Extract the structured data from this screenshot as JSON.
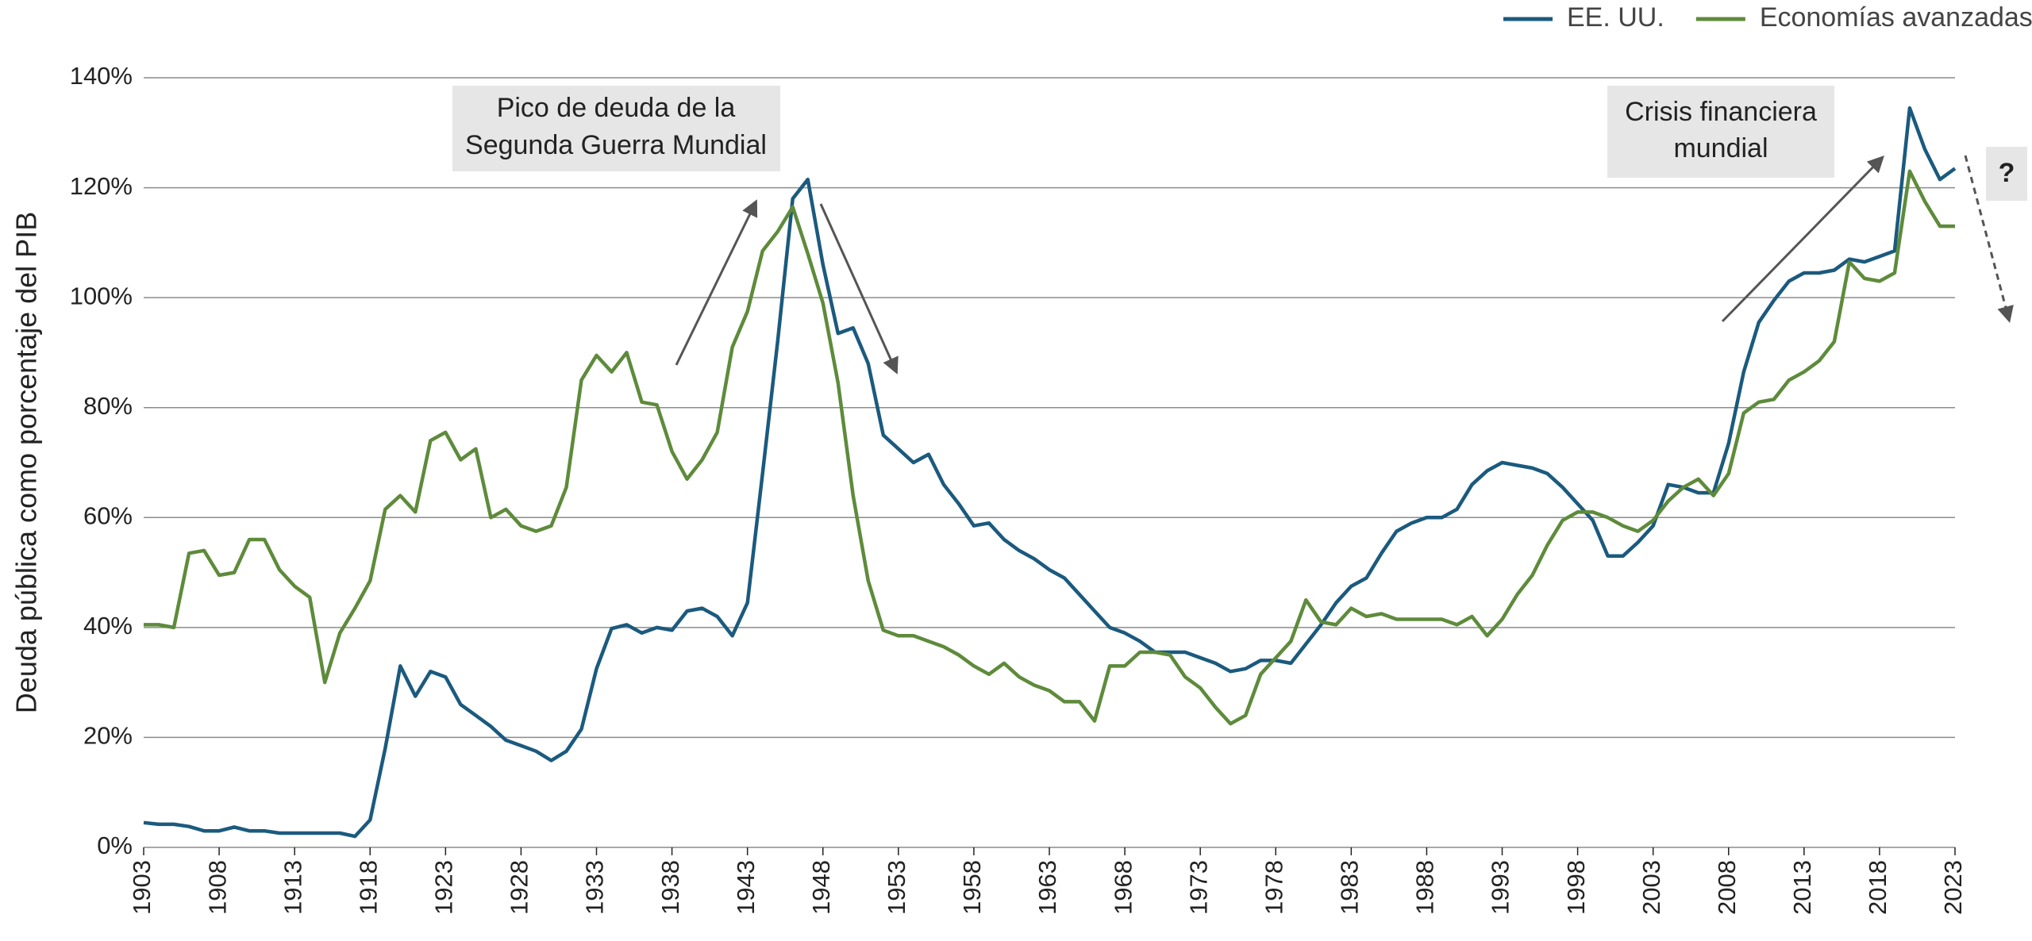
{
  "chart_data": {
    "type": "line",
    "y_label": "Deuda pública como porcentaje del PIB",
    "x": [
      1903,
      1904,
      1905,
      1906,
      1907,
      1908,
      1909,
      1910,
      1911,
      1912,
      1913,
      1914,
      1915,
      1916,
      1917,
      1918,
      1919,
      1920,
      1921,
      1922,
      1923,
      1924,
      1925,
      1926,
      1927,
      1928,
      1929,
      1930,
      1931,
      1932,
      1933,
      1934,
      1935,
      1936,
      1937,
      1938,
      1939,
      1940,
      1941,
      1942,
      1943,
      1944,
      1945,
      1946,
      1947,
      1948,
      1949,
      1950,
      1951,
      1952,
      1953,
      1954,
      1955,
      1956,
      1957,
      1958,
      1959,
      1960,
      1961,
      1962,
      1963,
      1964,
      1965,
      1966,
      1967,
      1968,
      1969,
      1970,
      1971,
      1972,
      1973,
      1974,
      1975,
      1976,
      1977,
      1978,
      1979,
      1980,
      1981,
      1982,
      1983,
      1984,
      1985,
      1986,
      1987,
      1988,
      1989,
      1990,
      1991,
      1992,
      1993,
      1994,
      1995,
      1996,
      1997,
      1998,
      1999,
      2000,
      2001,
      2002,
      2003,
      2004,
      2005,
      2006,
      2007,
      2008,
      2009,
      2010,
      2011,
      2012,
      2013,
      2014,
      2015,
      2016,
      2017,
      2018,
      2019,
      2020,
      2021,
      2022,
      2023
    ],
    "series": [
      {
        "name": "EE. UU.",
        "color": "#1b5a7e",
        "values": [
          4.5,
          4.2,
          4.2,
          3.8,
          3.0,
          3.0,
          3.7,
          3.0,
          3.0,
          2.6,
          2.6,
          2.6,
          2.6,
          2.6,
          2.0,
          5,
          18,
          33,
          27.5,
          32,
          31,
          26,
          24,
          22,
          19.5,
          18.5,
          17.5,
          15.8,
          17.5,
          21.5,
          32.5,
          39.8,
          40.5,
          39,
          40,
          39.5,
          43,
          43.5,
          42,
          38.5,
          44.5,
          68,
          92,
          118,
          121.5,
          106,
          93.5,
          94.5,
          88,
          75,
          72.5,
          70,
          71.5,
          66,
          62.5,
          58.5,
          59,
          56,
          54,
          52.5,
          50.5,
          49,
          46,
          43,
          40,
          39,
          37.5,
          35.5,
          35.5,
          35.5,
          34.5,
          33.5,
          32,
          32.5,
          34,
          34,
          33.5,
          37,
          40.5,
          44.5,
          47.5,
          49,
          53.5,
          57.5,
          59,
          60,
          60,
          61.5,
          66,
          68.5,
          70,
          69.5,
          69,
          68,
          65.5,
          62.5,
          59.5,
          53,
          53,
          55.5,
          58.5,
          66,
          65.5,
          64.5,
          64.5,
          73.5,
          86.5,
          95.5,
          99.5,
          103,
          104.5,
          104.5,
          105,
          107,
          106.5,
          107.5,
          108.5,
          134.5,
          127,
          121.5,
          123.5
        ]
      },
      {
        "name": "Economías avanzadas",
        "color": "#5e8b3b",
        "values": [
          40.5,
          40.5,
          40,
          53.5,
          54,
          49.5,
          50,
          56,
          56,
          50.5,
          47.5,
          45.5,
          30,
          39,
          43.5,
          48.5,
          61.5,
          64,
          61,
          74,
          75.5,
          70.5,
          72.5,
          60,
          61.5,
          58.5,
          57.5,
          58.5,
          65.5,
          85,
          89.5,
          86.5,
          90,
          81,
          80.5,
          72,
          67,
          70.5,
          75.5,
          91,
          97.5,
          108.5,
          112,
          116.5,
          108,
          99,
          84.5,
          64,
          48.5,
          39.5,
          38.5,
          38.5,
          37.5,
          36.5,
          35,
          33,
          31.5,
          33.5,
          31,
          29.5,
          28.5,
          26.5,
          26.5,
          23,
          33,
          33,
          35.5,
          35.5,
          35,
          31,
          29,
          25.5,
          22.5,
          24,
          31.5,
          34.5,
          37.5,
          45,
          41,
          40.5,
          43.5,
          42,
          42.5,
          41.5,
          41.5,
          41.5,
          41.5,
          40.5,
          42,
          38.5,
          41.5,
          46,
          49.5,
          55,
          59.5,
          61,
          61,
          60,
          58.5,
          57.5,
          59.5,
          63,
          65.5,
          67,
          64,
          68,
          79,
          81,
          81.5,
          85,
          86.5,
          88.5,
          92,
          106.5,
          103.5,
          103,
          104.5,
          123,
          117.5,
          113,
          113
        ]
      }
    ],
    "xlim": [
      1903,
      2023
    ],
    "xticks": [
      1903,
      1908,
      1913,
      1918,
      1923,
      1928,
      1933,
      1938,
      1943,
      1948,
      1953,
      1958,
      1963,
      1968,
      1973,
      1978,
      1983,
      1988,
      1993,
      1998,
      2003,
      2008,
      2013,
      2018,
      2023
    ],
    "ylim": [
      0,
      140
    ],
    "yticks": [
      {
        "value": 0,
        "label": "0%"
      },
      {
        "value": 20,
        "label": "20%"
      },
      {
        "value": 40,
        "label": "40%"
      },
      {
        "value": 60,
        "label": "60%"
      },
      {
        "value": 80,
        "label": "80%"
      },
      {
        "value": 100,
        "label": "100%"
      },
      {
        "value": 120,
        "label": "120%"
      },
      {
        "value": 140,
        "label": "140%"
      }
    ],
    "grid": true,
    "legend": "top-right",
    "annotations": [
      {
        "lines": [
          "Pico de deuda de la",
          "Segunda Guerra Mundial"
        ]
      },
      {
        "lines": [
          "Crisis financiera",
          "mundial"
        ]
      },
      {
        "lines": [
          "?"
        ]
      }
    ]
  }
}
